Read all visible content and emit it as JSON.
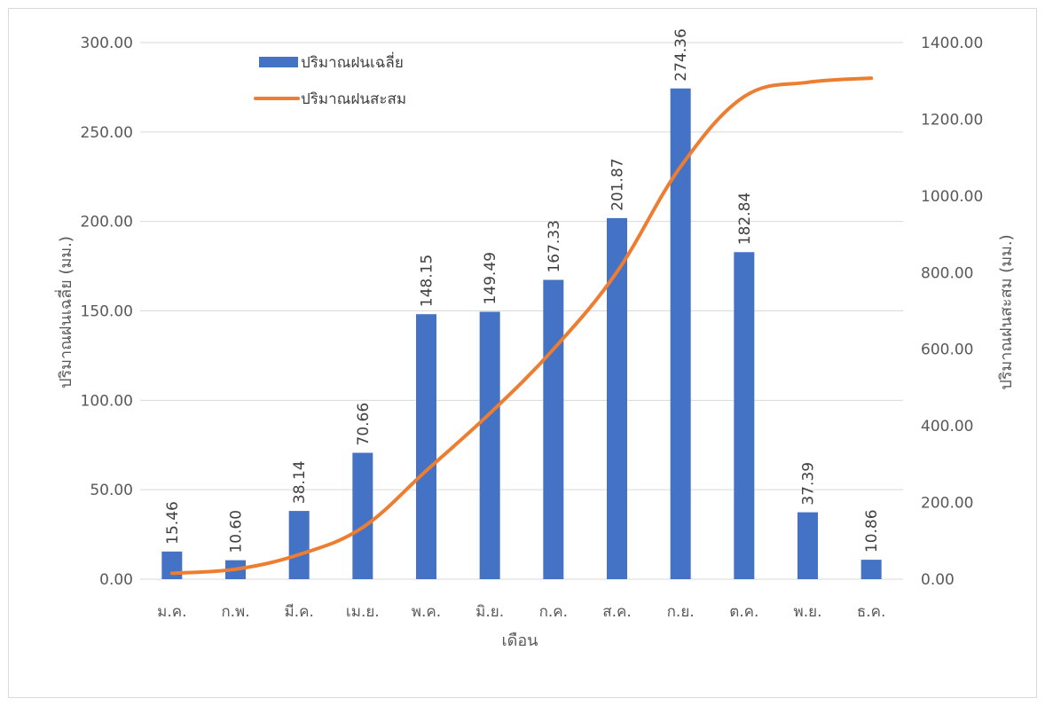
{
  "chart_data": {
    "type": "bar",
    "categories": [
      "ม.ค.",
      "ก.พ.",
      "มี.ค.",
      "เม.ย.",
      "พ.ค.",
      "มิ.ย.",
      "ก.ค.",
      "ส.ค.",
      "ก.ย.",
      "ต.ค.",
      "พ.ย.",
      "ธ.ค."
    ],
    "series": [
      {
        "name": "ปริมาณฝนเฉลี่ย",
        "type": "bar",
        "axis": "left",
        "color": "#4472c4",
        "values": [
          15.46,
          10.6,
          38.14,
          70.66,
          148.15,
          149.49,
          167.33,
          201.87,
          274.36,
          182.84,
          37.39,
          10.86
        ],
        "labels": [
          "15.46",
          "10.60",
          "38.14",
          "70.66",
          "148.15",
          "149.49",
          "167.33",
          "201.87",
          "274.36",
          "182.84",
          "37.39",
          "10.86"
        ]
      },
      {
        "name": "ปริมาณฝนสะสม",
        "type": "line",
        "axis": "right",
        "color": "#ed7d31",
        "values": [
          15.46,
          26.06,
          64.2,
          134.86,
          283.01,
          432.5,
          599.83,
          801.7,
          1076.06,
          1258.9,
          1296.29,
          1307.15
        ]
      }
    ],
    "xlabel": "เดือน",
    "ylabel": "ปริมาณฝนเฉลี่ย (มม.)",
    "y2label": "ปริมาณฝนสะสม (มม.)",
    "ylim": [
      0,
      300
    ],
    "y2lim": [
      0,
      1400
    ],
    "yticks": [
      "0.00",
      "50.00",
      "100.00",
      "150.00",
      "200.00",
      "250.00",
      "300.00"
    ],
    "y2ticks": [
      "0.00",
      "200.00",
      "400.00",
      "600.00",
      "800.00",
      "1000.00",
      "1200.00",
      "1400.00"
    ],
    "grid": true,
    "legend_position": "top-left"
  }
}
